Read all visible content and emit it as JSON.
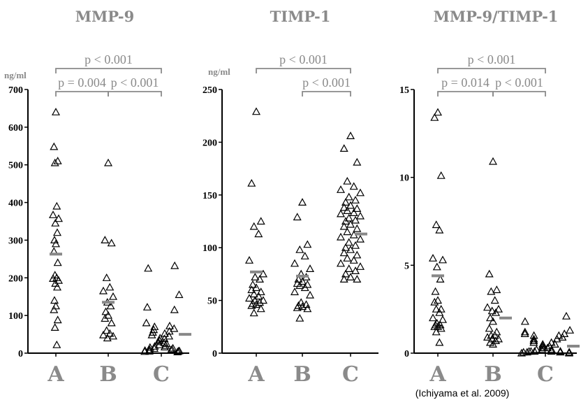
{
  "citation": "(Ichiyama et al. 2009)",
  "chart_data": [
    {
      "type": "scatter",
      "title": "MMP-9",
      "ylabel": "ng/ml",
      "ylim": [
        0,
        700
      ],
      "yticks": [
        0,
        100,
        200,
        300,
        400,
        500,
        600,
        700
      ],
      "categories": [
        "A",
        "B",
        "C"
      ],
      "groups": [
        {
          "name": "A",
          "mean": 263,
          "values": [
            640,
            548,
            510,
            505,
            390,
            367,
            357,
            345,
            320,
            300,
            290,
            270,
            240,
            207,
            200,
            198,
            193,
            185,
            175,
            140,
            125,
            115,
            88,
            68,
            22
          ]
        },
        {
          "name": "B",
          "mean": 135,
          "values": [
            505,
            300,
            292,
            200,
            175,
            165,
            150,
            135,
            125,
            110,
            100,
            92,
            80,
            60,
            52,
            48,
            45,
            40
          ]
        },
        {
          "name": "C",
          "mean": 50,
          "values": [
            232,
            225,
            155,
            122,
            115,
            80,
            72,
            70,
            65,
            62,
            58,
            55,
            52,
            48,
            45,
            40,
            38,
            35,
            33,
            30,
            28,
            25,
            22,
            20,
            18,
            16,
            15,
            13,
            12,
            10,
            9,
            8,
            7,
            6,
            5,
            5,
            4,
            3
          ]
        }
      ],
      "comparisons": [
        {
          "from": "A",
          "to": "C",
          "label": "p < 0.001"
        },
        {
          "from": "A",
          "to": "B",
          "label": "p = 0.004"
        },
        {
          "from": "B",
          "to": "C",
          "label": "p < 0.001"
        }
      ]
    },
    {
      "type": "scatter",
      "title": "TIMP-1",
      "ylabel": "ng/ml",
      "ylim": [
        0,
        250
      ],
      "yticks": [
        0,
        50,
        100,
        150,
        200,
        250
      ],
      "categories": [
        "A",
        "B",
        "C"
      ],
      "groups": [
        {
          "name": "A",
          "mean": 77,
          "values": [
            229,
            161,
            125,
            120,
            113,
            88,
            75,
            72,
            70,
            65,
            62,
            60,
            58,
            56,
            54,
            52,
            50,
            50,
            48,
            47,
            46,
            45,
            42,
            38
          ]
        },
        {
          "name": "B",
          "mean": 73,
          "values": [
            143,
            129,
            103,
            98,
            92,
            85,
            80,
            75,
            72,
            70,
            68,
            66,
            65,
            64,
            62,
            58,
            55,
            48,
            46,
            45,
            44,
            43,
            42,
            33
          ]
        },
        {
          "name": "C",
          "mean": 113,
          "values": [
            206,
            194,
            181,
            163,
            158,
            155,
            152,
            148,
            145,
            143,
            140,
            138,
            137,
            135,
            133,
            132,
            130,
            128,
            126,
            125,
            122,
            120,
            118,
            115,
            112,
            110,
            108,
            105,
            102,
            100,
            98,
            95,
            93,
            90,
            88,
            85,
            82,
            80,
            78,
            75,
            72,
            70,
            70
          ]
        }
      ],
      "comparisons": [
        {
          "from": "A",
          "to": "C",
          "label": "p < 0.001"
        },
        {
          "from": "B",
          "to": "C",
          "label": "p < 0.001"
        }
      ]
    },
    {
      "type": "scatter",
      "title": "MMP-9/TIMP-1",
      "ylabel": "",
      "ylim": [
        0,
        15
      ],
      "yticks": [
        0,
        5,
        10,
        15
      ],
      "categories": [
        "A",
        "B",
        "C"
      ],
      "groups": [
        {
          "name": "A",
          "mean": 4.4,
          "values": [
            13.7,
            13.4,
            10.1,
            7.3,
            7.0,
            5.4,
            5.3,
            4.9,
            4.2,
            3.5,
            3.0,
            2.9,
            2.5,
            2.5,
            2.3,
            2.0,
            1.9,
            1.7,
            1.6,
            1.6,
            1.5,
            1.5,
            1.4,
            1.2,
            0.6
          ]
        },
        {
          "name": "B",
          "mean": 2.0,
          "values": [
            10.9,
            4.5,
            3.6,
            3.5,
            3.0,
            2.6,
            2.5,
            2.4,
            2.3,
            2.0,
            1.8,
            1.4,
            1.2,
            1.0,
            1.0,
            0.9,
            0.8,
            0.8,
            0.7,
            0.6,
            0.5
          ]
        },
        {
          "name": "C",
          "mean": 0.4,
          "values": [
            2.1,
            1.8,
            1.3,
            1.2,
            1.1,
            1.1,
            1.0,
            1.0,
            0.9,
            0.8,
            0.8,
            0.7,
            0.6,
            0.6,
            0.5,
            0.5,
            0.4,
            0.4,
            0.3,
            0.3,
            0.3,
            0.2,
            0.2,
            0.2,
            0.2,
            0.1,
            0.1,
            0.1,
            0.1,
            0.1,
            0.1,
            0.05,
            0.05,
            0.05,
            0.05,
            0.05,
            0.0,
            0.0
          ]
        }
      ],
      "comparisons": [
        {
          "from": "A",
          "to": "C",
          "label": "p < 0.001"
        },
        {
          "from": "A",
          "to": "B",
          "label": "p = 0.014"
        },
        {
          "from": "B",
          "to": "C",
          "label": "p < 0.001"
        }
      ]
    }
  ],
  "colors": {
    "marker": "#000000",
    "mean_bar": "#888888",
    "bracket": "#8a8a8a",
    "text_gray": "#8a8a8a"
  }
}
